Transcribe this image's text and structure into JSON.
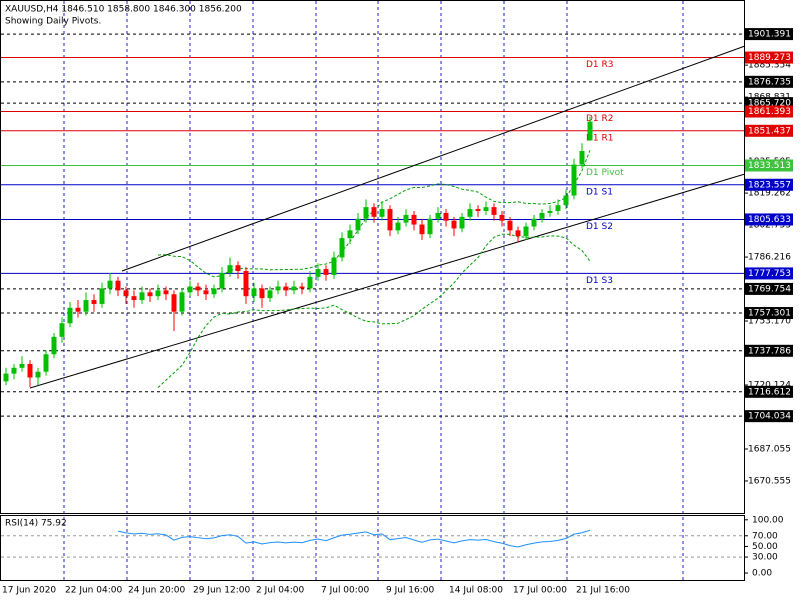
{
  "header": {
    "symbol_line": "XAUUSD,H4  1846.510 1858.800 1846.300 1856.200",
    "subtitle": "Showing Daily Pivots."
  },
  "chart_data": {
    "type": "candlestick",
    "ylim": [
      1654,
      1919
    ],
    "yticks": [
      1885.354,
      1868.831,
      1835.505,
      1819.262,
      1802.753,
      1786.216,
      {
        "value": 1753.17,
        "label": "1753.170"
      },
      1720.124,
      1687.055,
      1670.555
    ],
    "x_labels": [
      "17 Jun 2020",
      "22 Jun 04:00",
      "24 Jun 20:00",
      "29 Jun 12:00",
      "2 Jul 04:00",
      "7 Jul 00:00",
      "9 Jul 16:00",
      "14 Jul 08:00",
      "17 Jul 00:00",
      "21 Jul 16:00"
    ],
    "colors": {
      "up": "#00c000",
      "down": "#ff0000",
      "bands": "#00a000"
    },
    "levels": [
      {
        "name": "D1 R3",
        "value": 1889.273,
        "color": "#e00000"
      },
      {
        "name": "D1 R2",
        "value": 1861.393,
        "color": "#e00000"
      },
      {
        "name": "D1 R1",
        "value": 1851.437,
        "color": "#e00000"
      },
      {
        "name": "D1 Pivot",
        "value": 1833.513,
        "color": "#3cc23c"
      },
      {
        "name": "D1 S1",
        "value": 1823.557,
        "color": "#0000c8"
      },
      {
        "name": "D1 S2",
        "value": 1805.633,
        "color": "#0000c8"
      },
      {
        "name": "D1 S3",
        "value": 1777.753,
        "color": "#0000c8"
      }
    ],
    "price_lines": [
      1901.391,
      1876.735,
      {
        "value": 1865.72,
        "label": "1865.720"
      },
      1769.754,
      1757.301,
      1737.786,
      1716.612,
      1704.034
    ],
    "candles": [
      [
        1722,
        1729,
        1720,
        1726
      ],
      [
        1726,
        1731,
        1723,
        1729
      ],
      [
        1729,
        1735,
        1727,
        1731
      ],
      [
        1731,
        1733,
        1719,
        1724
      ],
      [
        1724,
        1729,
        1720,
        1727
      ],
      [
        1727,
        1738,
        1725,
        1736
      ],
      [
        1736,
        1747,
        1734,
        1745
      ],
      [
        1745,
        1755,
        1742,
        1752
      ],
      [
        1752,
        1763,
        1750,
        1760
      ],
      [
        1760,
        1764,
        1755,
        1758
      ],
      [
        1758,
        1768,
        1756,
        1764
      ],
      [
        1764,
        1767,
        1758,
        1762
      ],
      [
        1762,
        1773,
        1760,
        1770
      ],
      [
        1770,
        1778,
        1767,
        1774
      ],
      [
        1774,
        1776,
        1766,
        1769
      ],
      [
        1769,
        1771,
        1762,
        1766
      ],
      [
        1766,
        1769,
        1760,
        1764
      ],
      [
        1764,
        1771,
        1762,
        1768
      ],
      [
        1768,
        1770,
        1763,
        1766
      ],
      [
        1766,
        1772,
        1764,
        1769
      ],
      [
        1769,
        1771,
        1764,
        1767
      ],
      [
        1767,
        1769,
        1748,
        1758
      ],
      [
        1758,
        1770,
        1756,
        1768
      ],
      [
        1768,
        1774,
        1766,
        1771
      ],
      [
        1771,
        1773,
        1766,
        1769
      ],
      [
        1769,
        1772,
        1764,
        1767
      ],
      [
        1767,
        1772,
        1765,
        1770
      ],
      [
        1770,
        1781,
        1768,
        1778
      ],
      [
        1778,
        1786,
        1776,
        1782
      ],
      [
        1782,
        1784,
        1775,
        1779
      ],
      [
        1779,
        1781,
        1762,
        1766
      ],
      [
        1766,
        1773,
        1763,
        1770
      ],
      [
        1770,
        1772,
        1760,
        1765
      ],
      [
        1765,
        1771,
        1763,
        1769
      ],
      [
        1769,
        1774,
        1767,
        1771
      ],
      [
        1771,
        1773,
        1766,
        1769
      ],
      [
        1769,
        1774,
        1767,
        1771
      ],
      [
        1771,
        1773,
        1767,
        1770
      ],
      [
        1770,
        1779,
        1768,
        1776
      ],
      [
        1776,
        1783,
        1774,
        1780
      ],
      [
        1780,
        1782,
        1774,
        1777
      ],
      [
        1777,
        1789,
        1775,
        1786
      ],
      [
        1786,
        1799,
        1784,
        1796
      ],
      [
        1796,
        1803,
        1793,
        1800
      ],
      [
        1800,
        1809,
        1798,
        1806
      ],
      [
        1806,
        1816,
        1804,
        1812
      ],
      [
        1812,
        1814,
        1804,
        1807
      ],
      [
        1807,
        1815,
        1805,
        1811
      ],
      [
        1811,
        1813,
        1797,
        1800
      ],
      [
        1800,
        1807,
        1798,
        1804
      ],
      [
        1804,
        1811,
        1802,
        1808
      ],
      [
        1808,
        1810,
        1800,
        1803
      ],
      [
        1803,
        1806,
        1795,
        1798
      ],
      [
        1798,
        1808,
        1796,
        1806
      ],
      [
        1806,
        1812,
        1804,
        1809
      ],
      [
        1809,
        1811,
        1802,
        1805
      ],
      [
        1805,
        1807,
        1797,
        1801
      ],
      [
        1801,
        1809,
        1799,
        1807
      ],
      [
        1807,
        1814,
        1805,
        1811
      ],
      [
        1811,
        1813,
        1807,
        1810
      ],
      [
        1810,
        1815,
        1808,
        1812
      ],
      [
        1812,
        1814,
        1805,
        1808
      ],
      [
        1808,
        1810,
        1802,
        1805
      ],
      [
        1805,
        1807,
        1797,
        1800
      ],
      [
        1800,
        1802,
        1794,
        1797
      ],
      [
        1797,
        1804,
        1795,
        1802
      ],
      [
        1802,
        1808,
        1800,
        1806
      ],
      [
        1806,
        1811,
        1804,
        1809
      ],
      [
        1809,
        1813,
        1807,
        1810
      ],
      [
        1810,
        1816,
        1808,
        1813
      ],
      [
        1813,
        1821,
        1811,
        1818
      ],
      [
        1818,
        1837,
        1816,
        1834
      ],
      [
        1834,
        1845,
        1832,
        1841
      ],
      [
        1846.51,
        1858.8,
        1846.3,
        1856.2
      ]
    ],
    "rsi": {
      "label": "RSI(14) 75.92",
      "period": 14,
      "color": "#1e90ff",
      "ylim": [
        -13,
        109
      ],
      "yticks": [
        {
          "value": 100,
          "label": "100.00"
        },
        {
          "value": 70,
          "label": "70.00"
        },
        {
          "value": 50,
          "label": "50.00"
        },
        {
          "value": 30,
          "label": "30.00"
        },
        {
          "value": 0,
          "label": "0.00"
        }
      ],
      "levels": [
        70,
        30
      ]
    }
  }
}
